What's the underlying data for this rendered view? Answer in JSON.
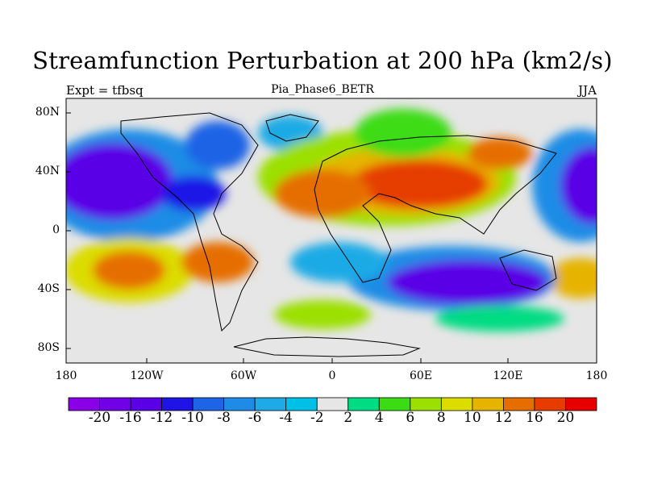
{
  "map": {
    "title": "Streamfunction Perturbation at 200 hPa (km2/s)",
    "left_label": "Expt = tfbsq",
    "center_label": "Pia_Phase6_BETR",
    "right_label": "JJA",
    "lat_labels": [
      "80N",
      "40N",
      "0",
      "40S",
      "80S"
    ],
    "lon_labels": [
      "180",
      "120W",
      "60W",
      "0",
      "60E",
      "120E",
      "180"
    ],
    "background_color": "#e6e6e6"
  },
  "colorbar": {
    "colors": [
      "#8a00e6",
      "#7200e6",
      "#5a00e6",
      "#1e14e6",
      "#1e64e6",
      "#1e8ce6",
      "#1eaae6",
      "#00c0e8",
      "#e6e6e6",
      "#00dc82",
      "#3cdc14",
      "#9be000",
      "#dcdc00",
      "#e6b400",
      "#e66e00",
      "#e63c00",
      "#e60000"
    ],
    "labels": [
      "-20",
      "-16",
      "-12",
      "-10",
      "-8",
      "-6",
      "-4",
      "-2",
      "2",
      "4",
      "6",
      "8",
      "10",
      "12",
      "16",
      "20"
    ]
  }
}
